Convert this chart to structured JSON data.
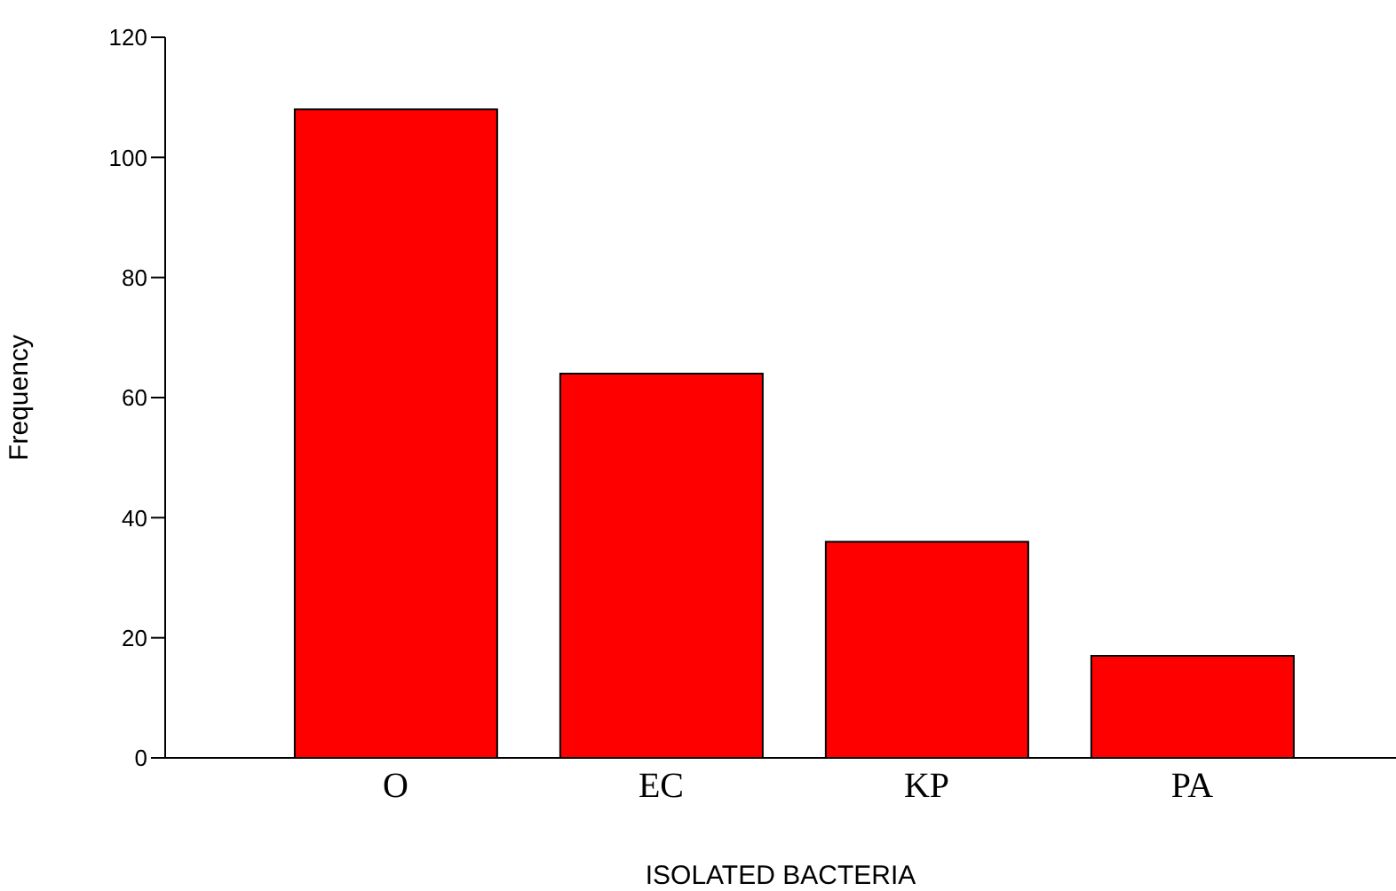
{
  "chart_data": {
    "type": "bar",
    "xlabel": "ISOLATED BACTERIA",
    "ylabel": "Frequency",
    "categories": [
      "O",
      "EC",
      "KP",
      "PA"
    ],
    "values": [
      108,
      64,
      36,
      17
    ],
    "color": "#ff0000",
    "ylim": [
      0,
      120
    ],
    "yticks": [
      0,
      20,
      40,
      60,
      80,
      100,
      120
    ],
    "grid": false
  }
}
